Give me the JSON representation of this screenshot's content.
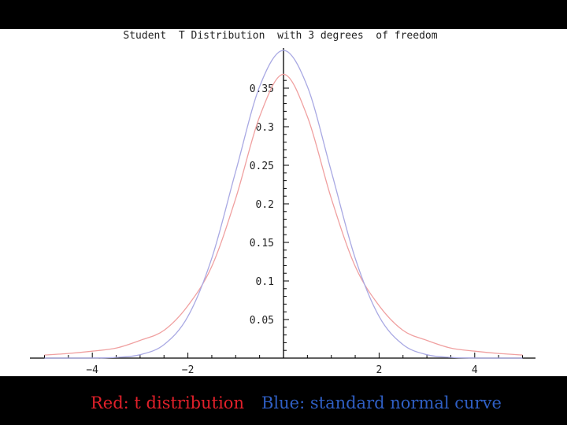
{
  "chart_data": {
    "type": "line",
    "title": "Student  T Distribution  with 3 degrees  of freedom",
    "xlabel": "",
    "ylabel": "",
    "xlim": [
      -5,
      5
    ],
    "ylim": [
      0,
      0.4
    ],
    "x_ticks": [
      -4,
      -2,
      2,
      4
    ],
    "y_ticks": [
      0.05,
      0.1,
      0.15,
      0.2,
      0.25,
      0.3,
      0.35
    ],
    "grid": false,
    "series": [
      {
        "color": "#f0a0a0",
        "x": [
          -5,
          -4.5,
          -4,
          -3.5,
          -3,
          -2.5,
          -2,
          -1.5,
          -1,
          -0.5,
          0,
          0.5,
          1,
          1.5,
          2,
          2.5,
          3,
          3.5,
          4,
          4.5,
          5
        ],
        "values": [
          0.004,
          0.006,
          0.009,
          0.013,
          0.023,
          0.036,
          0.068,
          0.119,
          0.207,
          0.313,
          0.368,
          0.313,
          0.207,
          0.119,
          0.068,
          0.036,
          0.023,
          0.013,
          0.009,
          0.006,
          0.004
        ]
      },
      {
        "color": "#a9a9e3",
        "x": [
          -5,
          -4.5,
          -4,
          -3.5,
          -3,
          -2.5,
          -2,
          -1.5,
          -1,
          -0.5,
          0,
          0.5,
          1,
          1.5,
          2,
          2.5,
          3,
          3.5,
          4,
          4.5,
          5
        ],
        "values": [
          0.0,
          0.0,
          0.0001,
          0.0009,
          0.0044,
          0.0175,
          0.054,
          0.1295,
          0.242,
          0.352,
          0.399,
          0.352,
          0.242,
          0.1295,
          0.054,
          0.0175,
          0.0044,
          0.0009,
          0.0001,
          0.0,
          0.0
        ]
      }
    ]
  },
  "caption": {
    "red": "Red: t distribution",
    "blue": "Blue: standard normal curve"
  },
  "colors": {
    "t_curve": "#f0a0a0",
    "normal_curve": "#a9a9e3",
    "caption_red": "#e0202a",
    "caption_blue": "#2f5fc4"
  }
}
